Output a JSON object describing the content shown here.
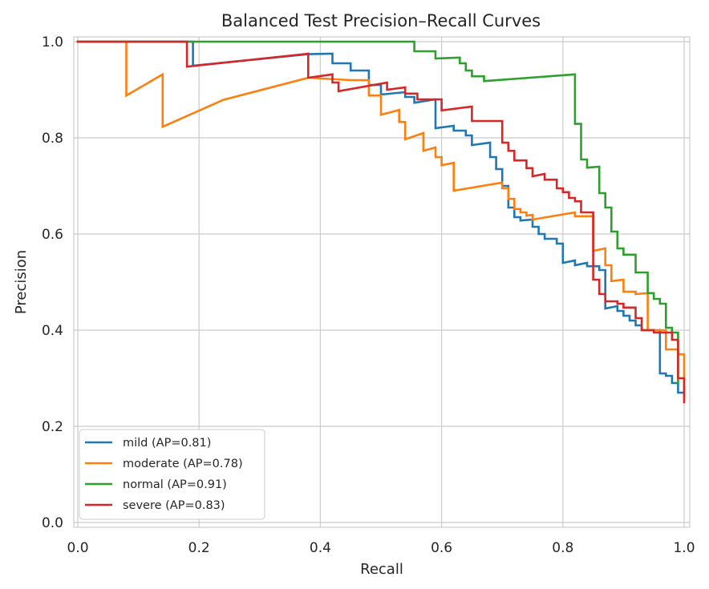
{
  "chart_data": {
    "type": "line",
    "title": "Balanced Test Precision–Recall Curves",
    "xlabel": "Recall",
    "ylabel": "Precision",
    "xlim": [
      0.0,
      1.0
    ],
    "ylim": [
      0.0,
      1.0
    ],
    "xticks": [
      "0.0",
      "0.2",
      "0.4",
      "0.6",
      "0.8",
      "1.0"
    ],
    "yticks": [
      "0.0",
      "0.2",
      "0.4",
      "0.6",
      "0.8",
      "1.0"
    ],
    "grid": true,
    "legend_position": "lower-left",
    "series": [
      {
        "name": "mild (AP=0.81)",
        "color": "#1f77b4",
        "points": [
          [
            0.0,
            1.0
          ],
          [
            0.19,
            1.0
          ],
          [
            0.19,
            0.95
          ],
          [
            0.38,
            0.974
          ],
          [
            0.42,
            0.975
          ],
          [
            0.42,
            0.955
          ],
          [
            0.45,
            0.955
          ],
          [
            0.45,
            0.94
          ],
          [
            0.48,
            0.94
          ],
          [
            0.48,
            0.91
          ],
          [
            0.5,
            0.91
          ],
          [
            0.5,
            0.89
          ],
          [
            0.54,
            0.895
          ],
          [
            0.54,
            0.885
          ],
          [
            0.555,
            0.885
          ],
          [
            0.555,
            0.873
          ],
          [
            0.59,
            0.88
          ],
          [
            0.59,
            0.82
          ],
          [
            0.62,
            0.825
          ],
          [
            0.62,
            0.815
          ],
          [
            0.64,
            0.815
          ],
          [
            0.64,
            0.805
          ],
          [
            0.65,
            0.805
          ],
          [
            0.65,
            0.785
          ],
          [
            0.68,
            0.79
          ],
          [
            0.68,
            0.76
          ],
          [
            0.69,
            0.76
          ],
          [
            0.69,
            0.735
          ],
          [
            0.7,
            0.735
          ],
          [
            0.7,
            0.7
          ],
          [
            0.71,
            0.7
          ],
          [
            0.71,
            0.655
          ],
          [
            0.72,
            0.655
          ],
          [
            0.72,
            0.635
          ],
          [
            0.73,
            0.635
          ],
          [
            0.73,
            0.628
          ],
          [
            0.75,
            0.63
          ],
          [
            0.75,
            0.615
          ],
          [
            0.76,
            0.615
          ],
          [
            0.76,
            0.6
          ],
          [
            0.77,
            0.6
          ],
          [
            0.77,
            0.59
          ],
          [
            0.79,
            0.59
          ],
          [
            0.79,
            0.58
          ],
          [
            0.8,
            0.58
          ],
          [
            0.8,
            0.54
          ],
          [
            0.82,
            0.545
          ],
          [
            0.82,
            0.535
          ],
          [
            0.84,
            0.54
          ],
          [
            0.84,
            0.533
          ],
          [
            0.86,
            0.533
          ],
          [
            0.86,
            0.525
          ],
          [
            0.87,
            0.525
          ],
          [
            0.87,
            0.445
          ],
          [
            0.89,
            0.45
          ],
          [
            0.89,
            0.44
          ],
          [
            0.9,
            0.44
          ],
          [
            0.9,
            0.43
          ],
          [
            0.91,
            0.43
          ],
          [
            0.91,
            0.42
          ],
          [
            0.92,
            0.42
          ],
          [
            0.92,
            0.41
          ],
          [
            0.93,
            0.41
          ],
          [
            0.93,
            0.4
          ],
          [
            0.96,
            0.4
          ],
          [
            0.96,
            0.31
          ],
          [
            0.97,
            0.31
          ],
          [
            0.97,
            0.305
          ],
          [
            0.98,
            0.305
          ],
          [
            0.98,
            0.29
          ],
          [
            0.99,
            0.29
          ],
          [
            0.99,
            0.27
          ],
          [
            1.0,
            0.27
          ]
        ]
      },
      {
        "name": "moderate (AP=0.78)",
        "color": "#ff7f0e",
        "points": [
          [
            0.0,
            1.0
          ],
          [
            0.08,
            1.0
          ],
          [
            0.08,
            0.888
          ],
          [
            0.14,
            0.932
          ],
          [
            0.14,
            0.823
          ],
          [
            0.24,
            0.879
          ],
          [
            0.38,
            0.925
          ],
          [
            0.45,
            0.92
          ],
          [
            0.48,
            0.92
          ],
          [
            0.48,
            0.888
          ],
          [
            0.5,
            0.888
          ],
          [
            0.5,
            0.848
          ],
          [
            0.53,
            0.858
          ],
          [
            0.53,
            0.833
          ],
          [
            0.54,
            0.833
          ],
          [
            0.54,
            0.797
          ],
          [
            0.57,
            0.81
          ],
          [
            0.57,
            0.773
          ],
          [
            0.59,
            0.78
          ],
          [
            0.59,
            0.76
          ],
          [
            0.6,
            0.76
          ],
          [
            0.6,
            0.743
          ],
          [
            0.62,
            0.748
          ],
          [
            0.62,
            0.69
          ],
          [
            0.7,
            0.707
          ],
          [
            0.7,
            0.695
          ],
          [
            0.71,
            0.695
          ],
          [
            0.71,
            0.673
          ],
          [
            0.72,
            0.673
          ],
          [
            0.72,
            0.652
          ],
          [
            0.73,
            0.652
          ],
          [
            0.73,
            0.645
          ],
          [
            0.74,
            0.645
          ],
          [
            0.74,
            0.638
          ],
          [
            0.75,
            0.64
          ],
          [
            0.75,
            0.63
          ],
          [
            0.82,
            0.645
          ],
          [
            0.82,
            0.637
          ],
          [
            0.85,
            0.637
          ],
          [
            0.85,
            0.565
          ],
          [
            0.87,
            0.57
          ],
          [
            0.87,
            0.535
          ],
          [
            0.88,
            0.535
          ],
          [
            0.88,
            0.502
          ],
          [
            0.9,
            0.505
          ],
          [
            0.9,
            0.48
          ],
          [
            0.92,
            0.48
          ],
          [
            0.92,
            0.475
          ],
          [
            0.94,
            0.477
          ],
          [
            0.94,
            0.4
          ],
          [
            0.97,
            0.4
          ],
          [
            0.97,
            0.36
          ],
          [
            0.99,
            0.36
          ],
          [
            0.99,
            0.35
          ],
          [
            1.0,
            0.35
          ],
          [
            1.0,
            0.26
          ]
        ]
      },
      {
        "name": "normal (AP=0.91)",
        "color": "#2ca02c",
        "points": [
          [
            0.0,
            1.0
          ],
          [
            0.555,
            1.0
          ],
          [
            0.555,
            0.98
          ],
          [
            0.59,
            0.98
          ],
          [
            0.59,
            0.965
          ],
          [
            0.63,
            0.967
          ],
          [
            0.63,
            0.955
          ],
          [
            0.64,
            0.955
          ],
          [
            0.64,
            0.94
          ],
          [
            0.65,
            0.94
          ],
          [
            0.65,
            0.928
          ],
          [
            0.67,
            0.928
          ],
          [
            0.67,
            0.918
          ],
          [
            0.82,
            0.932
          ],
          [
            0.82,
            0.829
          ],
          [
            0.83,
            0.829
          ],
          [
            0.83,
            0.755
          ],
          [
            0.84,
            0.755
          ],
          [
            0.84,
            0.738
          ],
          [
            0.86,
            0.74
          ],
          [
            0.86,
            0.685
          ],
          [
            0.87,
            0.685
          ],
          [
            0.87,
            0.655
          ],
          [
            0.88,
            0.655
          ],
          [
            0.88,
            0.605
          ],
          [
            0.89,
            0.605
          ],
          [
            0.89,
            0.57
          ],
          [
            0.9,
            0.57
          ],
          [
            0.9,
            0.557
          ],
          [
            0.92,
            0.557
          ],
          [
            0.92,
            0.52
          ],
          [
            0.94,
            0.52
          ],
          [
            0.94,
            0.477
          ],
          [
            0.95,
            0.477
          ],
          [
            0.95,
            0.465
          ],
          [
            0.96,
            0.465
          ],
          [
            0.96,
            0.455
          ],
          [
            0.97,
            0.455
          ],
          [
            0.97,
            0.405
          ],
          [
            0.98,
            0.405
          ],
          [
            0.98,
            0.395
          ],
          [
            0.99,
            0.395
          ],
          [
            0.99,
            0.29
          ]
        ]
      },
      {
        "name": "severe (AP=0.83)",
        "color": "#d62728",
        "points": [
          [
            0.0,
            1.0
          ],
          [
            0.18,
            1.0
          ],
          [
            0.18,
            0.948
          ],
          [
            0.38,
            0.975
          ],
          [
            0.38,
            0.925
          ],
          [
            0.42,
            0.932
          ],
          [
            0.42,
            0.915
          ],
          [
            0.43,
            0.915
          ],
          [
            0.43,
            0.897
          ],
          [
            0.51,
            0.915
          ],
          [
            0.51,
            0.9
          ],
          [
            0.54,
            0.905
          ],
          [
            0.54,
            0.892
          ],
          [
            0.56,
            0.892
          ],
          [
            0.56,
            0.88
          ],
          [
            0.6,
            0.88
          ],
          [
            0.6,
            0.857
          ],
          [
            0.65,
            0.865
          ],
          [
            0.65,
            0.835
          ],
          [
            0.7,
            0.835
          ],
          [
            0.7,
            0.79
          ],
          [
            0.71,
            0.79
          ],
          [
            0.71,
            0.773
          ],
          [
            0.72,
            0.773
          ],
          [
            0.72,
            0.753
          ],
          [
            0.74,
            0.753
          ],
          [
            0.74,
            0.737
          ],
          [
            0.75,
            0.737
          ],
          [
            0.75,
            0.72
          ],
          [
            0.77,
            0.725
          ],
          [
            0.77,
            0.713
          ],
          [
            0.79,
            0.713
          ],
          [
            0.79,
            0.695
          ],
          [
            0.8,
            0.695
          ],
          [
            0.8,
            0.687
          ],
          [
            0.81,
            0.687
          ],
          [
            0.81,
            0.675
          ],
          [
            0.82,
            0.675
          ],
          [
            0.82,
            0.668
          ],
          [
            0.83,
            0.668
          ],
          [
            0.83,
            0.645
          ],
          [
            0.85,
            0.645
          ],
          [
            0.85,
            0.505
          ],
          [
            0.86,
            0.505
          ],
          [
            0.86,
            0.475
          ],
          [
            0.87,
            0.475
          ],
          [
            0.87,
            0.46
          ],
          [
            0.89,
            0.46
          ],
          [
            0.89,
            0.455
          ],
          [
            0.9,
            0.455
          ],
          [
            0.9,
            0.447
          ],
          [
            0.92,
            0.447
          ],
          [
            0.92,
            0.425
          ],
          [
            0.93,
            0.425
          ],
          [
            0.93,
            0.4
          ],
          [
            0.95,
            0.4
          ],
          [
            0.95,
            0.395
          ],
          [
            0.97,
            0.395
          ],
          [
            0.97,
            0.395
          ],
          [
            0.98,
            0.395
          ],
          [
            0.98,
            0.38
          ],
          [
            0.99,
            0.38
          ],
          [
            0.99,
            0.3
          ],
          [
            1.0,
            0.3
          ],
          [
            1.0,
            0.25
          ]
        ]
      }
    ]
  }
}
